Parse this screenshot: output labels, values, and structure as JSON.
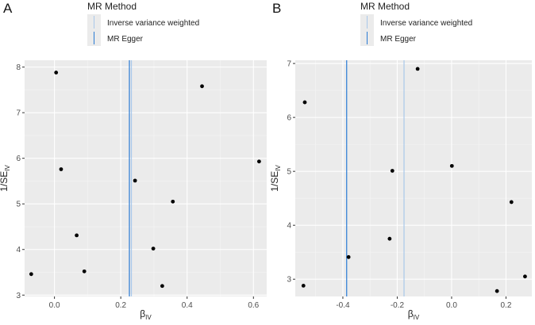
{
  "legend": {
    "title": "MR Method",
    "entries": [
      {
        "label": "Inverse variance weighted",
        "color": "#a9c8ea"
      },
      {
        "label": "MR Egger",
        "color": "#2a7bd4"
      }
    ]
  },
  "axis_label_symbols": {
    "x_main": "β",
    "x_sub": "IV",
    "y_main": "1/SE",
    "y_sub": "IV"
  },
  "chart_data": [
    {
      "type": "scatter",
      "panel": "A",
      "xlim": [
        -0.09,
        0.64
      ],
      "ylim": [
        2.97,
        8.15
      ],
      "x_ticks": [
        0.0,
        0.2,
        0.4,
        0.6
      ],
      "x_tick_labels": [
        "0.0",
        "0.2",
        "0.4",
        "0.6"
      ],
      "y_ticks": [
        3,
        4,
        5,
        6,
        7,
        8
      ],
      "y_tick_labels": [
        "3",
        "4",
        "5",
        "6",
        "7",
        "8"
      ],
      "grid": true,
      "points": [
        {
          "x": 0.005,
          "y": 7.88
        },
        {
          "x": 0.445,
          "y": 7.58
        },
        {
          "x": 0.617,
          "y": 5.93
        },
        {
          "x": 0.02,
          "y": 5.76
        },
        {
          "x": 0.243,
          "y": 5.51
        },
        {
          "x": 0.357,
          "y": 5.05
        },
        {
          "x": 0.067,
          "y": 4.31
        },
        {
          "x": 0.298,
          "y": 4.02
        },
        {
          "x": 0.09,
          "y": 3.52
        },
        {
          "x": -0.07,
          "y": 3.46
        },
        {
          "x": 0.325,
          "y": 3.2
        }
      ],
      "vlines": [
        {
          "method": "Inverse variance weighted",
          "x": 0.232,
          "color": "#a9c8ea"
        },
        {
          "method": "MR Egger",
          "x": 0.226,
          "color": "#2a7bd4"
        }
      ]
    },
    {
      "type": "scatter",
      "panel": "B",
      "xlim": [
        -0.575,
        0.295
      ],
      "ylim": [
        2.68,
        7.06
      ],
      "x_ticks": [
        -0.4,
        -0.2,
        0.0,
        0.2
      ],
      "x_tick_labels": [
        "-0.4",
        "-0.2",
        "0.0",
        "0.2"
      ],
      "y_ticks": [
        3,
        4,
        5,
        6,
        7
      ],
      "y_tick_labels": [
        "3",
        "4",
        "5",
        "6",
        "7"
      ],
      "grid": true,
      "points": [
        {
          "x": -0.125,
          "y": 6.9
        },
        {
          "x": -0.54,
          "y": 6.28
        },
        {
          "x": 0.001,
          "y": 5.1
        },
        {
          "x": -0.218,
          "y": 5.01
        },
        {
          "x": 0.22,
          "y": 4.43
        },
        {
          "x": -0.228,
          "y": 3.75
        },
        {
          "x": -0.379,
          "y": 3.41
        },
        {
          "x": 0.27,
          "y": 3.05
        },
        {
          "x": -0.545,
          "y": 2.88
        },
        {
          "x": 0.167,
          "y": 2.78
        }
      ],
      "vlines": [
        {
          "method": "Inverse variance weighted",
          "x": -0.175,
          "color": "#a9c8ea"
        },
        {
          "method": "MR Egger",
          "x": -0.386,
          "color": "#2a7bd4"
        }
      ]
    }
  ]
}
